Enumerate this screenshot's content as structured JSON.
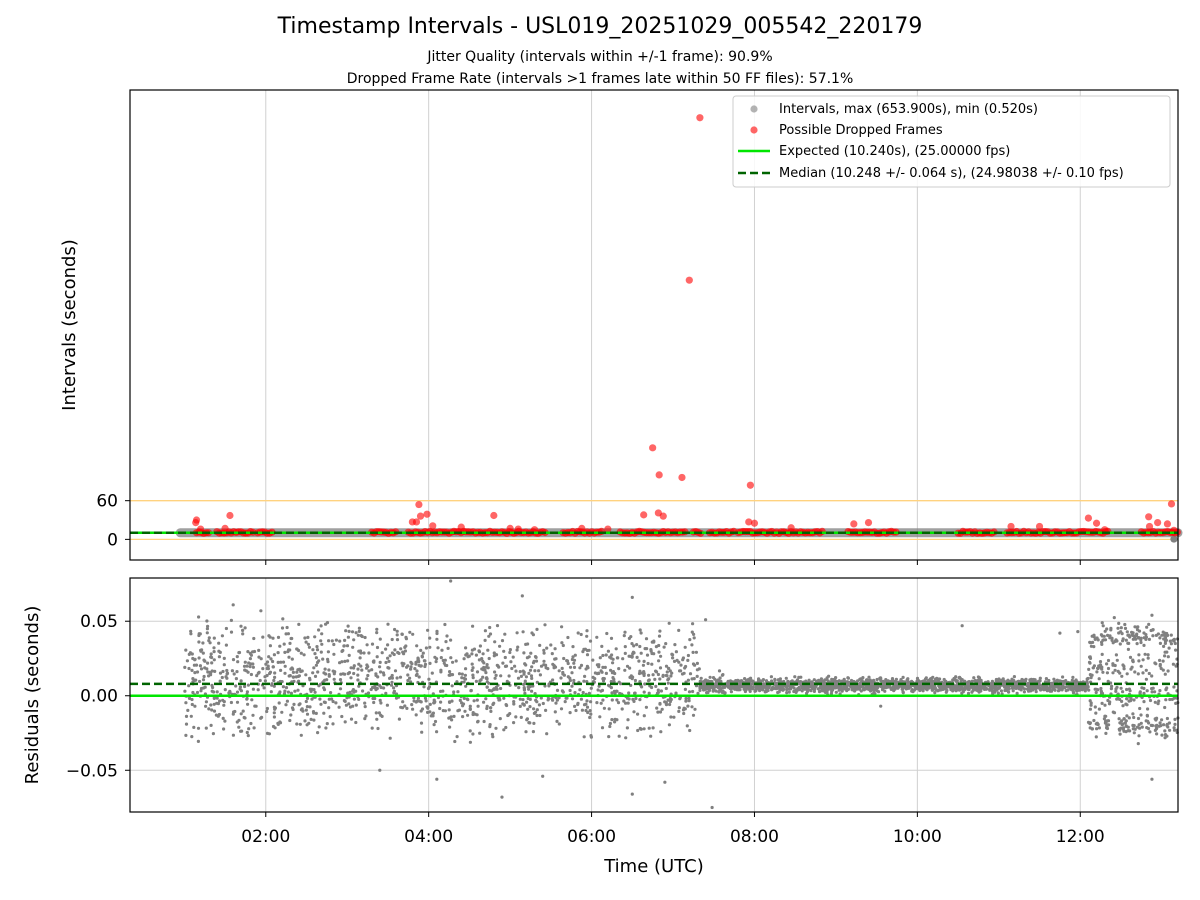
{
  "figure": {
    "title": "Timestamp Intervals - USL019_20251029_005542_220179",
    "subtitle_jitter": "Jitter Quality (intervals within +/-1 frame): 90.9%",
    "subtitle_dropped": "Dropped Frame Rate (intervals >1 frames late within 50 FF files): 57.1%"
  },
  "colors": {
    "intervals": "#808080",
    "dropped": "#ff0000",
    "expected": "#00e600",
    "median": "#006400",
    "threshold": "#ffd27f",
    "grid": "#d0d0d0"
  },
  "chart_data": [
    {
      "type": "scatter",
      "panel": "intervals",
      "ylabel": "Intervals (seconds)",
      "xlim_hours": [
        0.333,
        13.2
      ],
      "ylim": [
        -32,
        697
      ],
      "yticks": [
        {
          "value": 0,
          "label": "0"
        },
        {
          "value": 60,
          "label": "60"
        }
      ],
      "threshold_lines": [
        0,
        60
      ],
      "grid": "x",
      "legend_position": "top-right",
      "legend": {
        "intervals": "Intervals, max (653.900s), min (0.520s)",
        "dropped": "Possible Dropped Frames",
        "expected": "Expected (10.240s), (25.00000 fps)",
        "median": "Median (10.248 +/- 0.064 s), (24.98038 +/- 0.10 fps)"
      },
      "expected_value": 10.24,
      "median_value": 10.248,
      "interval_max": 653.9,
      "interval_min": 0.52,
      "interval_band": {
        "start_hour": 0.95,
        "end_hour": 13.2,
        "value": 10.24
      },
      "interval_min_point": {
        "x": 13.15,
        "y": 0.52
      },
      "dropped_segments": [
        {
          "start": 1.15,
          "end": 1.3,
          "value": 10.9
        },
        {
          "start": 1.4,
          "end": 1.85,
          "value": 10.9
        },
        {
          "start": 1.9,
          "end": 2.1,
          "value": 10.9
        },
        {
          "start": 3.3,
          "end": 3.6,
          "value": 10.9
        },
        {
          "start": 3.75,
          "end": 5.45,
          "value": 10.9
        },
        {
          "start": 5.65,
          "end": 6.15,
          "value": 10.9
        },
        {
          "start": 6.35,
          "end": 7.15,
          "value": 10.9
        },
        {
          "start": 7.25,
          "end": 7.35,
          "value": 10.9
        },
        {
          "start": 7.45,
          "end": 7.75,
          "value": 10.9
        },
        {
          "start": 7.8,
          "end": 8.85,
          "value": 10.9
        },
        {
          "start": 9.15,
          "end": 9.75,
          "value": 10.9
        },
        {
          "start": 10.5,
          "end": 10.95,
          "value": 10.9
        },
        {
          "start": 11.1,
          "end": 12.35,
          "value": 10.9
        },
        {
          "start": 12.75,
          "end": 13.2,
          "value": 10.9
        }
      ],
      "dropped_points": [
        {
          "x": 1.15,
          "y": 30
        },
        {
          "x": 1.14,
          "y": 26
        },
        {
          "x": 1.56,
          "y": 37
        },
        {
          "x": 1.2,
          "y": 16
        },
        {
          "x": 1.5,
          "y": 17
        },
        {
          "x": 3.8,
          "y": 27
        },
        {
          "x": 3.85,
          "y": 27
        },
        {
          "x": 3.88,
          "y": 54
        },
        {
          "x": 3.9,
          "y": 36
        },
        {
          "x": 3.98,
          "y": 39
        },
        {
          "x": 4.05,
          "y": 21
        },
        {
          "x": 4.4,
          "y": 19
        },
        {
          "x": 4.8,
          "y": 37
        },
        {
          "x": 5.0,
          "y": 17
        },
        {
          "x": 5.1,
          "y": 16
        },
        {
          "x": 5.3,
          "y": 15
        },
        {
          "x": 5.88,
          "y": 17
        },
        {
          "x": 6.2,
          "y": 16
        },
        {
          "x": 6.64,
          "y": 38
        },
        {
          "x": 6.75,
          "y": 142
        },
        {
          "x": 6.83,
          "y": 100
        },
        {
          "x": 6.82,
          "y": 41
        },
        {
          "x": 6.88,
          "y": 36
        },
        {
          "x": 7.11,
          "y": 96
        },
        {
          "x": 7.2,
          "y": 402
        },
        {
          "x": 7.33,
          "y": 654
        },
        {
          "x": 7.95,
          "y": 84
        },
        {
          "x": 7.93,
          "y": 27
        },
        {
          "x": 8.0,
          "y": 25
        },
        {
          "x": 8.45,
          "y": 18
        },
        {
          "x": 9.22,
          "y": 24
        },
        {
          "x": 9.4,
          "y": 26
        },
        {
          "x": 11.15,
          "y": 20
        },
        {
          "x": 11.5,
          "y": 20
        },
        {
          "x": 12.1,
          "y": 33
        },
        {
          "x": 12.2,
          "y": 25
        },
        {
          "x": 12.3,
          "y": 15
        },
        {
          "x": 12.84,
          "y": 35
        },
        {
          "x": 12.85,
          "y": 20
        },
        {
          "x": 12.95,
          "y": 26
        },
        {
          "x": 13.07,
          "y": 24
        },
        {
          "x": 13.12,
          "y": 55
        },
        {
          "x": 13.15,
          "y": 14
        }
      ]
    },
    {
      "type": "scatter",
      "panel": "residuals",
      "ylabel": "Residuals (seconds)",
      "xlabel": "Time (UTC)",
      "xlim_hours": [
        0.333,
        13.2
      ],
      "ylim": [
        -0.078,
        0.079
      ],
      "yticks": [
        {
          "value": 0.05,
          "label": "0.05"
        },
        {
          "value": 0.0,
          "label": "0.00"
        },
        {
          "value": -0.05,
          "label": "−0.05"
        }
      ],
      "xticks": [
        {
          "value": 2,
          "label": "02:00"
        },
        {
          "value": 4,
          "label": "04:00"
        },
        {
          "value": 6,
          "label": "06:00"
        },
        {
          "value": 8,
          "label": "08:00"
        },
        {
          "value": 10,
          "label": "10:00"
        },
        {
          "value": 12,
          "label": "12:00"
        }
      ],
      "grid": "both",
      "expected_value": 0.0,
      "median_value": 0.008,
      "regimes": [
        {
          "start": 1.0,
          "end": 7.33,
          "count": 1500,
          "levels": [
            -0.01,
            0.0,
            0.01,
            0.02,
            0.03
          ],
          "spread": 0.02
        },
        {
          "start": 7.33,
          "end": 12.1,
          "count": 1800,
          "levels": [
            0.007
          ],
          "spread": 0.0045
        },
        {
          "start": 12.1,
          "end": 13.2,
          "count": 420,
          "levels": [
            -0.02,
            0.0,
            0.02,
            0.04
          ],
          "spread": 0.004
        }
      ],
      "outliers": [
        {
          "x": 1.6,
          "y": 0.061
        },
        {
          "x": 1.94,
          "y": 0.057
        },
        {
          "x": 4.27,
          "y": 0.077
        },
        {
          "x": 5.15,
          "y": 0.067
        },
        {
          "x": 6.5,
          "y": 0.066
        },
        {
          "x": 7.4,
          "y": 0.051
        },
        {
          "x": 7.48,
          "y": -0.075
        },
        {
          "x": 5.4,
          "y": -0.054
        },
        {
          "x": 4.1,
          "y": -0.056
        },
        {
          "x": 4.9,
          "y": -0.068
        },
        {
          "x": 6.5,
          "y": -0.066
        },
        {
          "x": 3.4,
          "y": -0.05
        },
        {
          "x": 10.55,
          "y": 0.047
        },
        {
          "x": 9.55,
          "y": -0.007
        },
        {
          "x": 11.75,
          "y": 0.042
        },
        {
          "x": 12.27,
          "y": 0.049
        },
        {
          "x": 12.88,
          "y": 0.054
        },
        {
          "x": 12.88,
          "y": -0.056
        },
        {
          "x": 11.97,
          "y": 0.043
        },
        {
          "x": 6.9,
          "y": -0.058
        }
      ]
    }
  ]
}
